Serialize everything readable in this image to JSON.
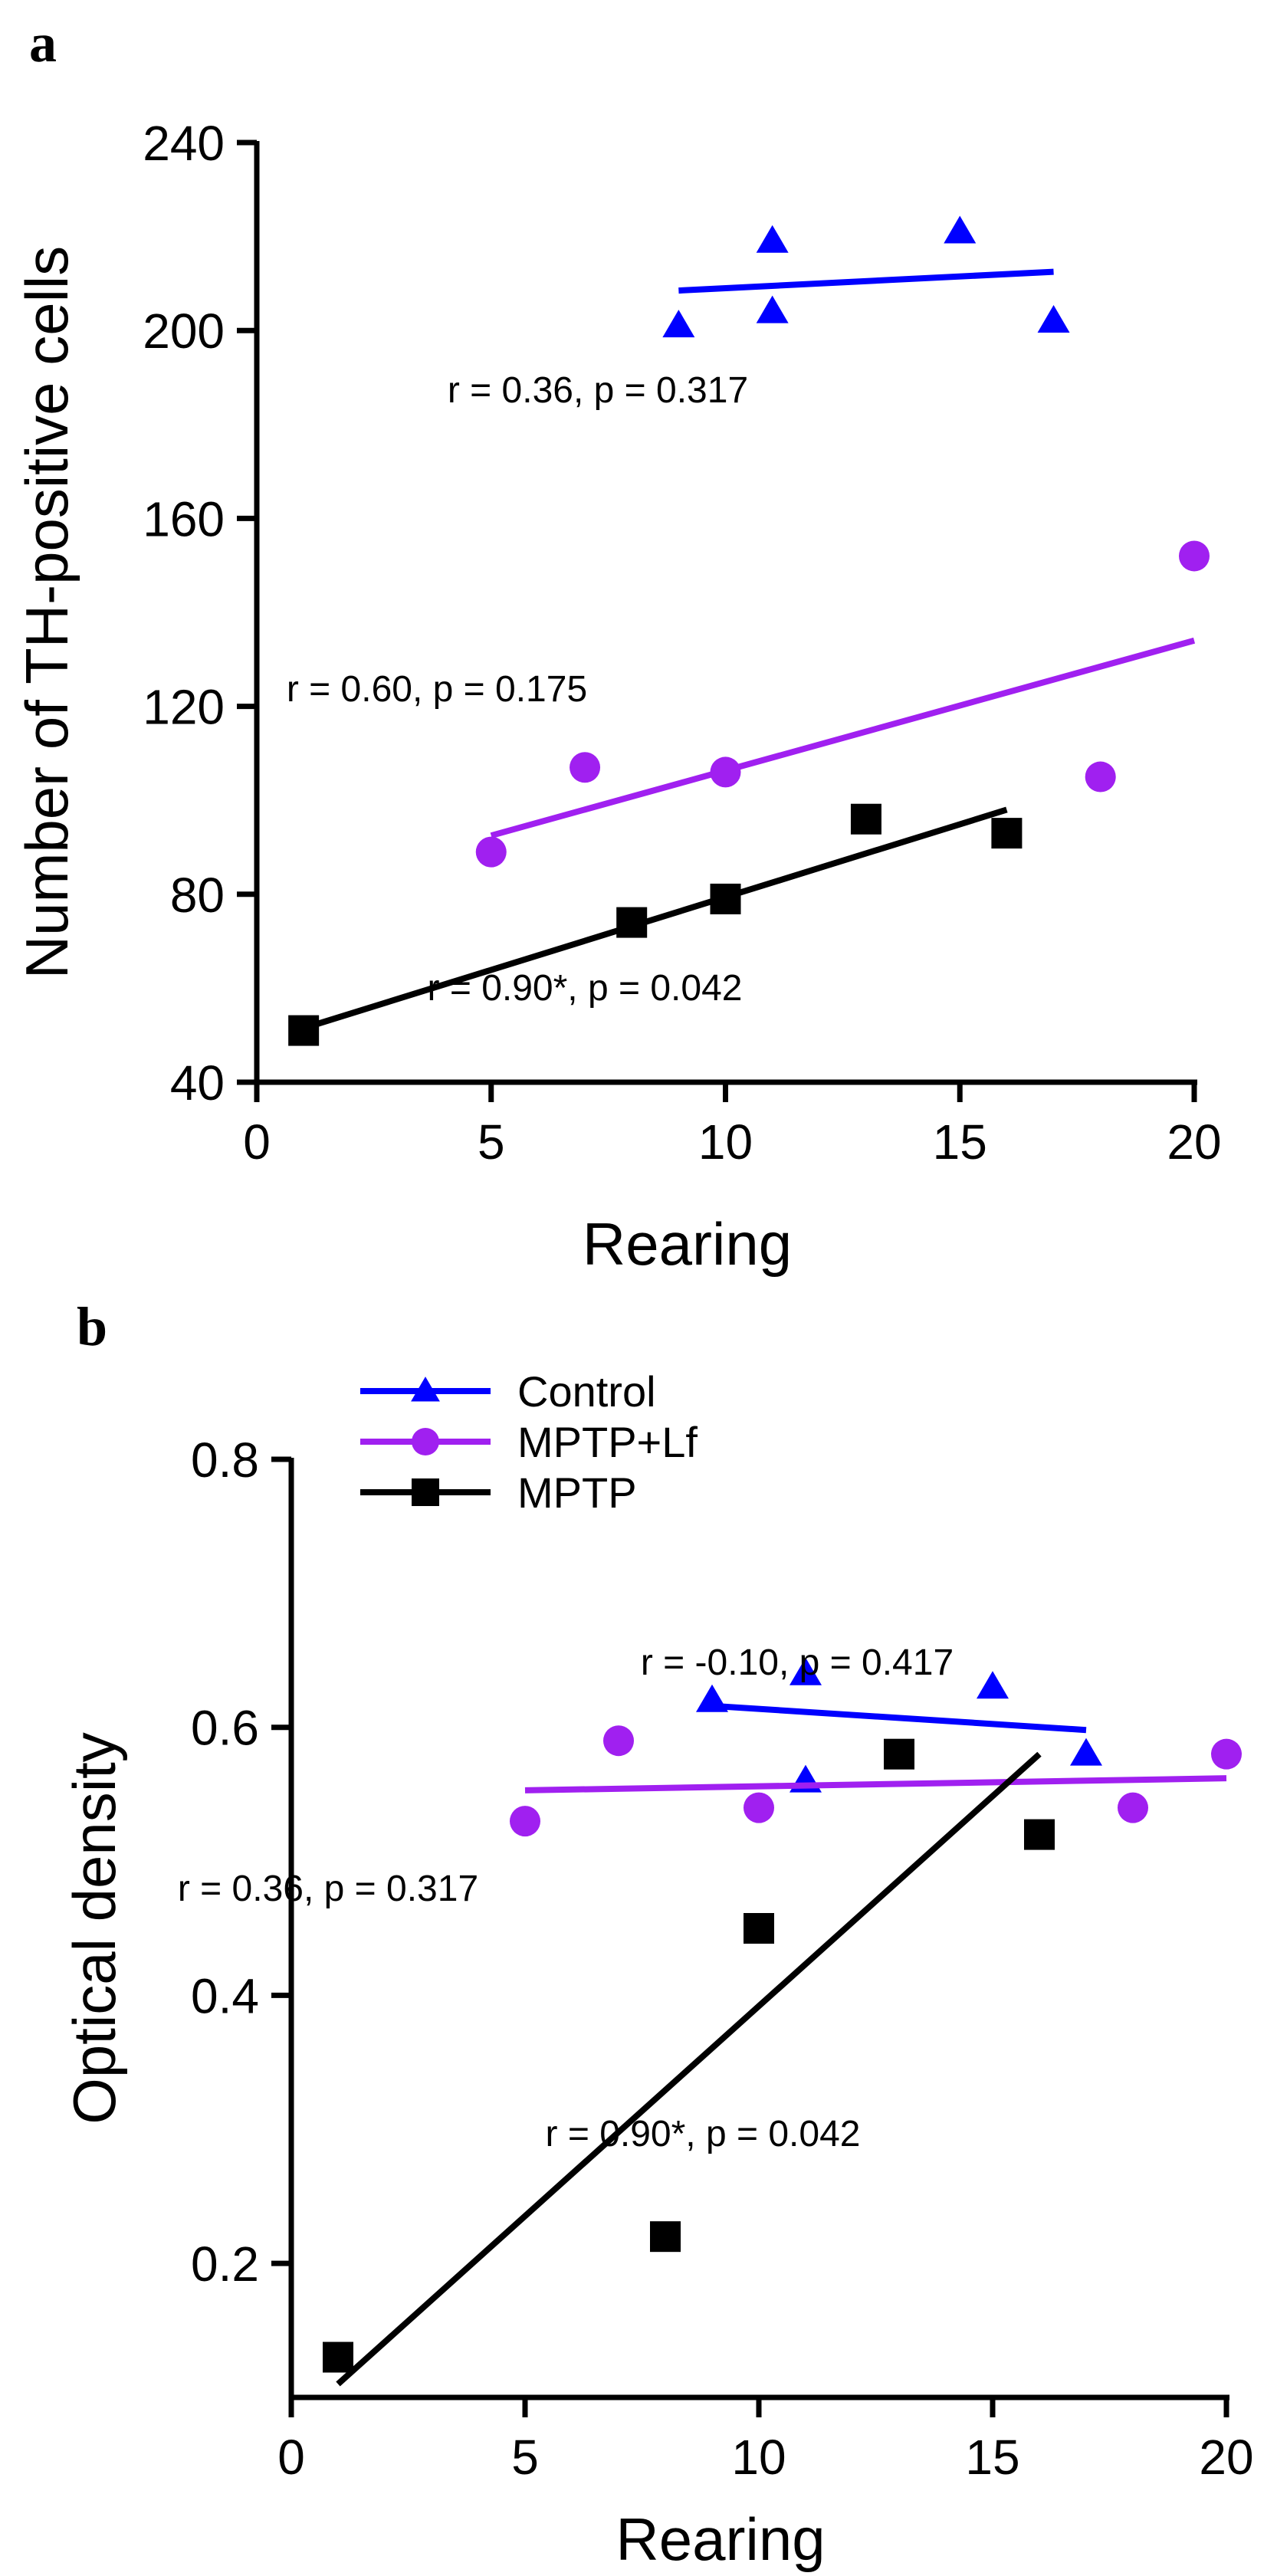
{
  "chart_data": [
    {
      "panel": "a",
      "type": "scatter",
      "xlabel": "Rearing",
      "ylabel": "Number of TH-positive cells",
      "xlim": [
        0,
        20
      ],
      "ylim": [
        40,
        240
      ],
      "xticks": [
        0,
        5,
        10,
        15,
        20
      ],
      "yticks": [
        40,
        80,
        120,
        160,
        200,
        240
      ],
      "legend": false,
      "series": [
        {
          "name": "Control",
          "marker": "triangle",
          "color": "#0000ff",
          "x": [
            9,
            11,
            11,
            15,
            17
          ],
          "y": [
            201,
            219,
            204,
            221,
            202
          ],
          "fit": {
            "x": [
              9,
              17
            ],
            "y": [
              208.5,
              212.5
            ]
          },
          "annotation": "r = 0.36, p = 0.317"
        },
        {
          "name": "MPTP+Lf",
          "marker": "circle",
          "color": "#a020f0",
          "x": [
            5,
            7,
            10,
            18,
            20
          ],
          "y": [
            89,
            107,
            106,
            105,
            152
          ],
          "fit": {
            "x": [
              5,
              20
            ],
            "y": [
              92.5,
              134
            ]
          },
          "annotation": "r = 0.60, p = 0.175"
        },
        {
          "name": "MPTP",
          "marker": "square",
          "color": "#000000",
          "x": [
            1,
            8,
            10,
            13,
            16
          ],
          "y": [
            51,
            74,
            79,
            96,
            93
          ],
          "fit": {
            "x": [
              1,
              16
            ],
            "y": [
              51.5,
              98
            ]
          },
          "annotation": "r = 0.90*, p = 0.042"
        }
      ]
    },
    {
      "panel": "b",
      "type": "scatter",
      "xlabel": "Rearing",
      "ylabel": "Optical density",
      "xlim": [
        0,
        20
      ],
      "ylim": [
        0.1,
        0.8
      ],
      "xticks": [
        0,
        5,
        10,
        15,
        20
      ],
      "yticks": [
        0.2,
        0.4,
        0.6,
        0.8
      ],
      "ytick_labels": [
        "0.2",
        "0.4",
        "0.6",
        "0.8"
      ],
      "legend": true,
      "legend_position": "top-left",
      "series": [
        {
          "name": "Control",
          "marker": "triangle",
          "color": "#0000ff",
          "x": [
            9,
            11,
            11,
            15,
            17
          ],
          "y": [
            0.62,
            0.64,
            0.56,
            0.63,
            0.58
          ],
          "fit": {
            "x": [
              9,
              17
            ],
            "y": [
              0.616,
              0.598
            ]
          },
          "annotation": "r = -0.10, p = 0.417"
        },
        {
          "name": "MPTP+Lf",
          "marker": "circle",
          "color": "#a020f0",
          "x": [
            5,
            7,
            10,
            18,
            20
          ],
          "y": [
            0.53,
            0.59,
            0.54,
            0.54,
            0.58
          ],
          "fit": {
            "x": [
              5,
              20
            ],
            "y": [
              0.553,
              0.562
            ]
          },
          "annotation": "r = 0.36, p = 0.317"
        },
        {
          "name": "MPTP",
          "marker": "square",
          "color": "#000000",
          "x": [
            1,
            8,
            10,
            13,
            16
          ],
          "y": [
            0.13,
            0.22,
            0.45,
            0.58,
            0.52
          ],
          "fit": {
            "x": [
              1,
              16
            ],
            "y": [
              0.11,
              0.58
            ]
          },
          "annotation": "r = 0.90*, p = 0.042"
        }
      ]
    }
  ]
}
